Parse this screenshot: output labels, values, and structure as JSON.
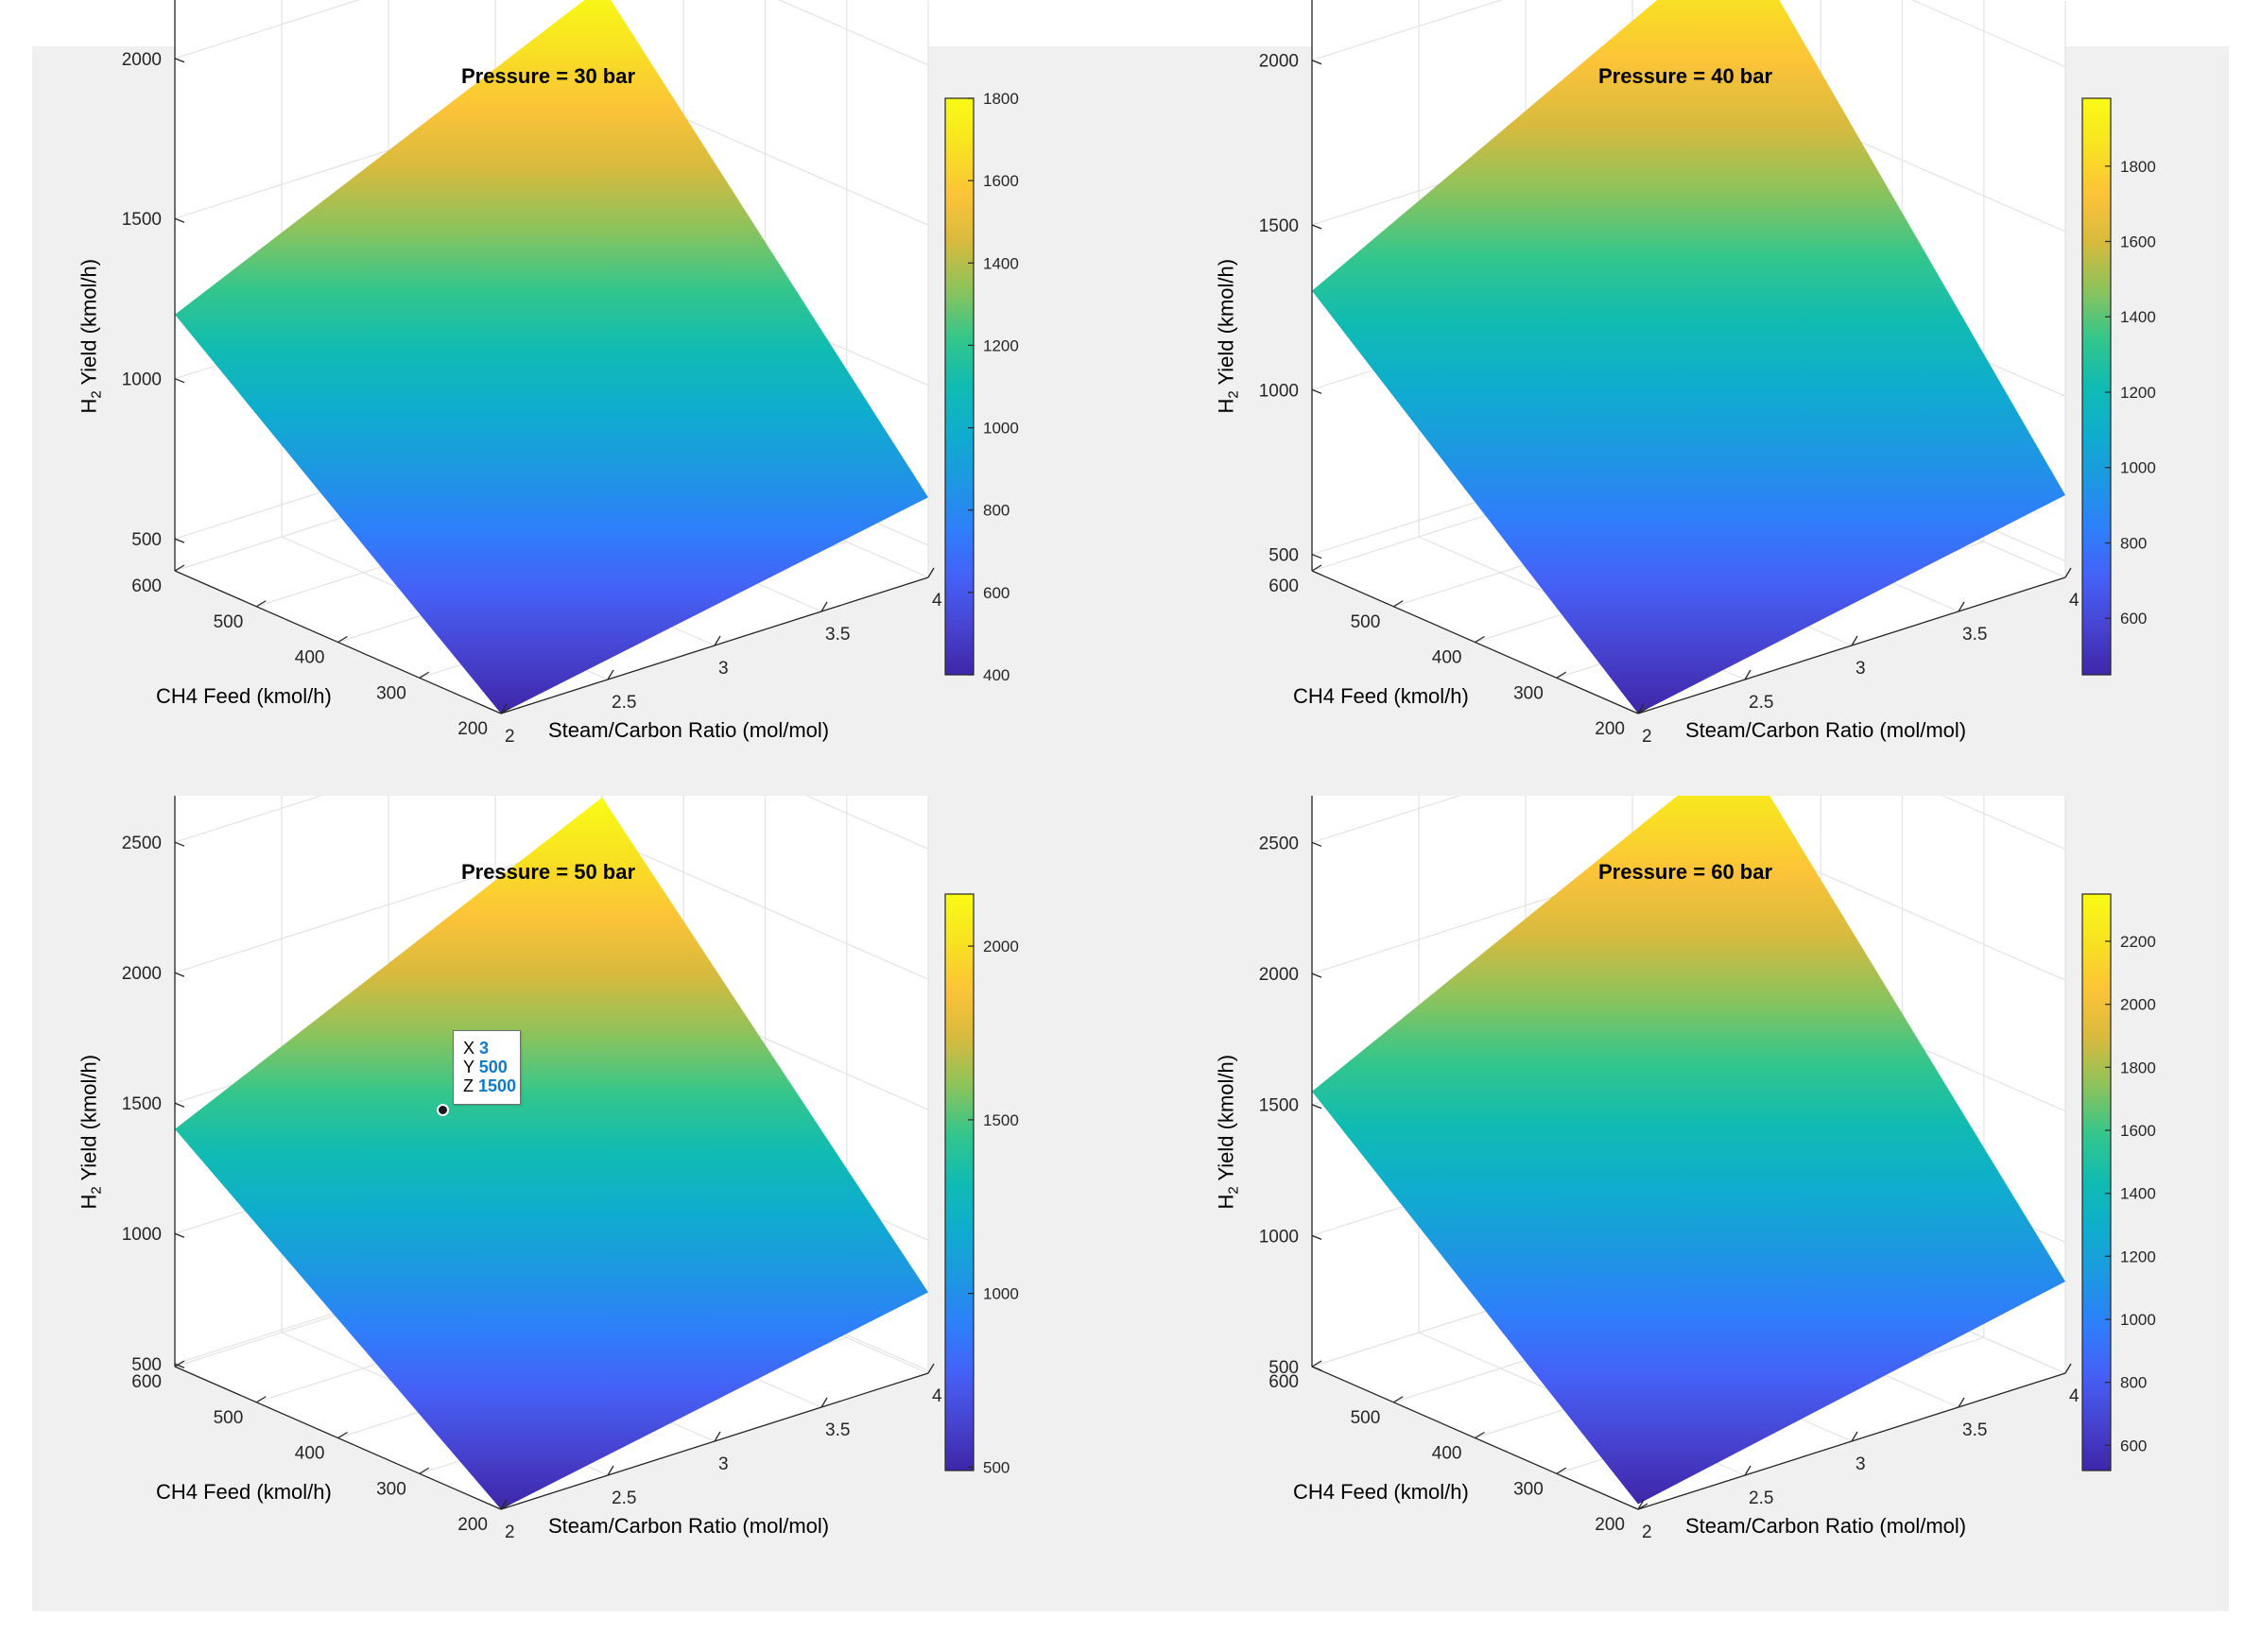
{
  "chart_data": [
    {
      "type": "surface",
      "title": "Pressure = 30 bar",
      "xlabel": "Steam/Carbon Ratio (mol/mol)",
      "ylabel": "CH4 Feed (kmol/h)",
      "zlabel_main": "H",
      "zlabel_sub": "2",
      "zlabel_rest": " Yield (kmol/h)",
      "x": [
        2,
        4
      ],
      "y": [
        200,
        600
      ],
      "x_ticks": [
        "2",
        "2.5",
        "3",
        "3.5",
        "4"
      ],
      "y_ticks": [
        "200",
        "300",
        "400",
        "500",
        "600"
      ],
      "z_ticks": [
        500,
        1000,
        1500,
        2000
      ],
      "zlim": [
        400,
        2200
      ],
      "corner_values": {
        "x2_y200": 400,
        "x4_y200": 650,
        "x2_y600": 1200,
        "x4_y600": 1800
      },
      "colorbar": {
        "range": [
          400,
          1800
        ],
        "ticks": [
          400,
          600,
          800,
          1000,
          1200,
          1400,
          1600,
          1800
        ]
      },
      "colormap": "parula"
    },
    {
      "type": "surface",
      "title": "Pressure = 40 bar",
      "xlabel": "Steam/Carbon Ratio (mol/mol)",
      "ylabel": "CH4 Feed (kmol/h)",
      "zlabel_main": "H",
      "zlabel_sub": "2",
      "zlabel_rest": " Yield (kmol/h)",
      "x": [
        2,
        4
      ],
      "y": [
        200,
        600
      ],
      "x_ticks": [
        "2",
        "2.5",
        "3",
        "3.5",
        "4"
      ],
      "y_ticks": [
        "200",
        "300",
        "400",
        "500",
        "600"
      ],
      "z_ticks": [
        500,
        1000,
        1500,
        2000
      ],
      "zlim": [
        450,
        2200
      ],
      "corner_values": {
        "x2_y200": 450,
        "x4_y200": 700,
        "x2_y600": 1300,
        "x4_y600": 1980
      },
      "colorbar": {
        "range": [
          450,
          1980
        ],
        "ticks": [
          600,
          800,
          1000,
          1200,
          1400,
          1600,
          1800
        ]
      },
      "colormap": "parula"
    },
    {
      "type": "surface",
      "title": "Pressure = 50 bar",
      "xlabel": "Steam/Carbon Ratio (mol/mol)",
      "ylabel": "CH4 Feed (kmol/h)",
      "zlabel_main": "H",
      "zlabel_sub": "2",
      "zlabel_rest": " Yield (kmol/h)",
      "x": [
        2,
        4
      ],
      "y": [
        200,
        600
      ],
      "x_ticks": [
        "2",
        "2.5",
        "3",
        "3.5",
        "4"
      ],
      "y_ticks": [
        "200",
        "300",
        "400",
        "500",
        "600"
      ],
      "z_ticks": [
        500,
        1000,
        1500,
        2000,
        2500
      ],
      "zlim": [
        490,
        2700
      ],
      "corner_values": {
        "x2_y200": 490,
        "x4_y200": 800,
        "x2_y600": 1400,
        "x4_y600": 2150
      },
      "colorbar": {
        "range": [
          490,
          2150
        ],
        "ticks": [
          500,
          1000,
          1500,
          2000
        ]
      },
      "colormap": "parula",
      "datatip": {
        "x_key": "X",
        "x_val": "3",
        "y_key": "Y",
        "y_val": "500",
        "z_key": "Z",
        "z_val": "1500"
      }
    },
    {
      "type": "surface",
      "title": "Pressure = 60 bar",
      "xlabel": "Steam/Carbon Ratio (mol/mol)",
      "ylabel": "CH4 Feed (kmol/h)",
      "zlabel_main": "H",
      "zlabel_sub": "2",
      "zlabel_rest": " Yield (kmol/h)",
      "x": [
        2,
        4
      ],
      "y": [
        200,
        600
      ],
      "x_ticks": [
        "2",
        "2.5",
        "3",
        "3.5",
        "4"
      ],
      "y_ticks": [
        "200",
        "300",
        "400",
        "500",
        "600"
      ],
      "z_ticks": [
        500,
        1000,
        1500,
        2000,
        2500
      ],
      "zlim": [
        500,
        2700
      ],
      "corner_values": {
        "x2_y200": 520,
        "x4_y200": 850,
        "x2_y600": 1550,
        "x4_y600": 2350
      },
      "colorbar": {
        "range": [
          520,
          2350
        ],
        "ticks": [
          600,
          800,
          1000,
          1200,
          1400,
          1600,
          1800,
          2000,
          2200
        ]
      },
      "colormap": "parula"
    }
  ]
}
